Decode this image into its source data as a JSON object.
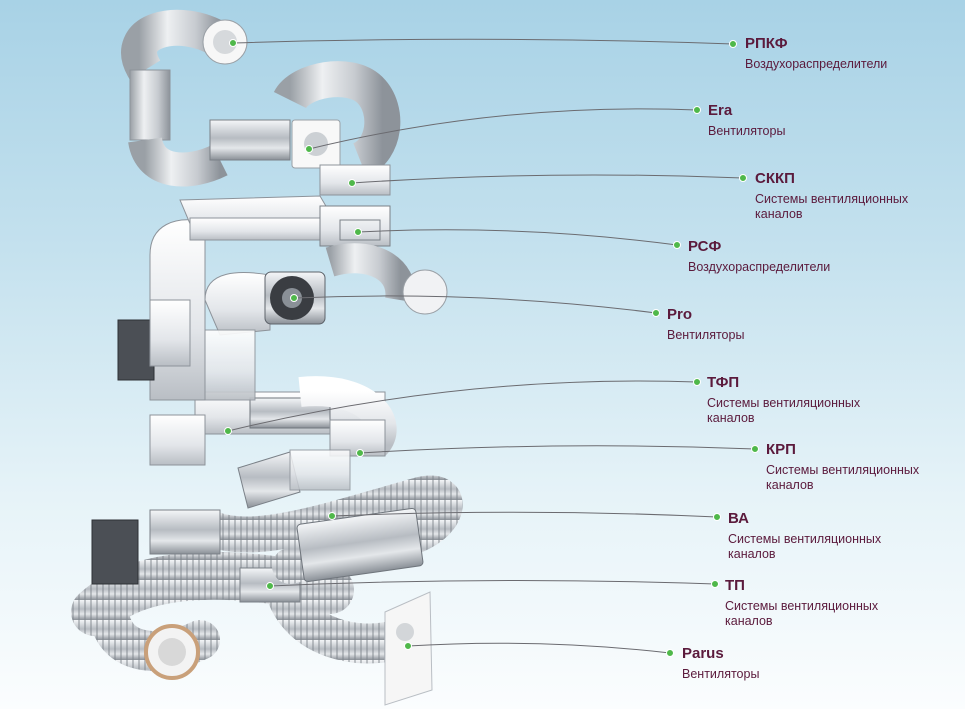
{
  "callouts": [
    {
      "title": "РПКФ",
      "desc": "Воздухораспределители"
    },
    {
      "title": "Era",
      "desc": "Вентиляторы"
    },
    {
      "title": "СККП",
      "desc": "Системы вентиляционных каналов"
    },
    {
      "title": "РСФ",
      "desc": "Воздухораспределители"
    },
    {
      "title": "Pro",
      "desc": "Вентиляторы"
    },
    {
      "title": "ТФП",
      "desc": "Системы вентиляционных каналов"
    },
    {
      "title": "КРП",
      "desc": "Системы вентиляционных каналов"
    },
    {
      "title": "ВА",
      "desc": "Системы вентиляционных каналов"
    },
    {
      "title": "ТП",
      "desc": "Системы вентиляционных каналов"
    },
    {
      "title": "Parus",
      "desc": "Вентиляторы"
    }
  ],
  "colors": {
    "label": "#5b1a3c",
    "leader": "#6b6b70",
    "dot": "#4fb84a"
  }
}
